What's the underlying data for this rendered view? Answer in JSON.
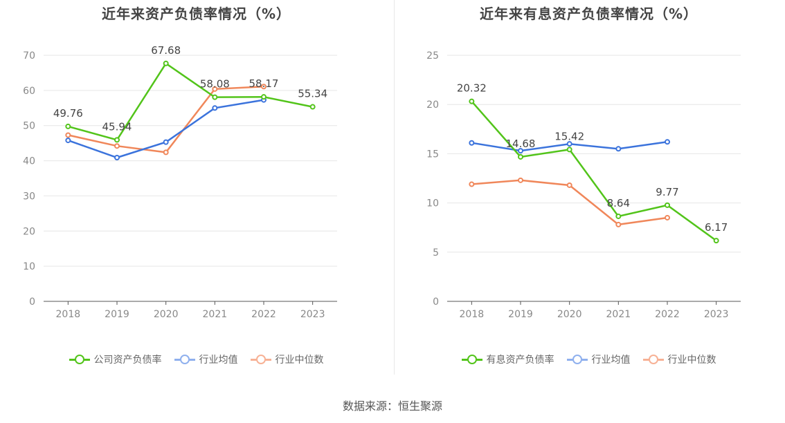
{
  "left": {
    "title": "近年来资产负债率情况（%）",
    "legend": [
      "公司资产负债率",
      "行业均值",
      "行业中位数"
    ]
  },
  "right": {
    "title": "近年来有息资产负债率情况（%）",
    "legend": [
      "有息资产负债率",
      "行业均值",
      "行业中位数"
    ]
  },
  "source": "数据来源：恒生聚源",
  "colors": {
    "company": "#52c41a",
    "avg": "#3b73dc",
    "median": "#f0875a"
  },
  "chart_data": [
    {
      "type": "line",
      "title": "近年来资产负债率情况（%）",
      "categories": [
        "2018",
        "2019",
        "2020",
        "2021",
        "2022",
        "2023"
      ],
      "ylim": [
        0,
        70
      ],
      "yticks": [
        0,
        10,
        20,
        30,
        40,
        50,
        60,
        70
      ],
      "grid": true,
      "legend_position": "bottom",
      "series": [
        {
          "name": "公司资产负债率",
          "values": [
            49.76,
            45.94,
            67.68,
            58.08,
            58.17,
            55.34
          ],
          "labels": [
            "49.76",
            "45.94",
            "67.68",
            "58.08",
            "58.17",
            "55.34"
          ]
        },
        {
          "name": "行业均值",
          "values": [
            45.8,
            40.9,
            45.3,
            55.0,
            57.3,
            null
          ]
        },
        {
          "name": "行业中位数",
          "values": [
            47.3,
            44.2,
            42.4,
            60.4,
            61.1,
            null
          ]
        }
      ]
    },
    {
      "type": "line",
      "title": "近年来有息资产负债率情况（%）",
      "categories": [
        "2018",
        "2019",
        "2020",
        "2021",
        "2022",
        "2023"
      ],
      "ylim": [
        0,
        25
      ],
      "yticks": [
        0,
        5,
        10,
        15,
        20,
        25
      ],
      "grid": true,
      "legend_position": "bottom",
      "series": [
        {
          "name": "有息资产负债率",
          "values": [
            20.32,
            14.68,
            15.42,
            8.64,
            9.77,
            6.17
          ],
          "labels": [
            "20.32",
            "14.68",
            "15.42",
            "8.64",
            "9.77",
            "6.17"
          ]
        },
        {
          "name": "行业均值",
          "values": [
            16.1,
            15.3,
            16.0,
            15.5,
            16.2,
            null
          ]
        },
        {
          "name": "行业中位数",
          "values": [
            11.9,
            12.3,
            11.8,
            7.8,
            8.5,
            null
          ]
        }
      ]
    }
  ]
}
